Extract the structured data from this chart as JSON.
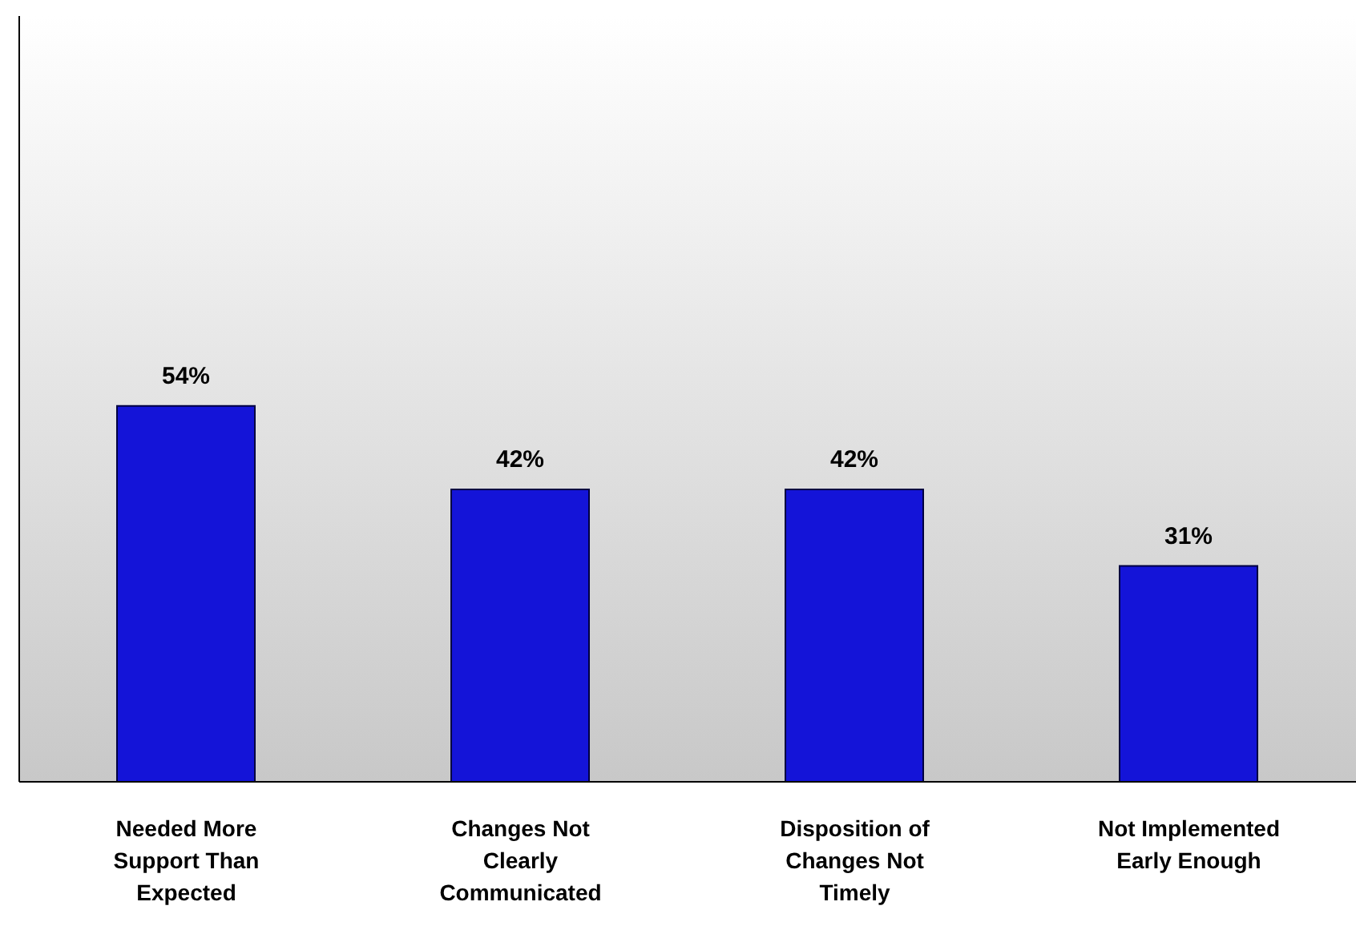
{
  "chart_data": {
    "type": "bar",
    "categories": [
      "Needed More Support Than Expected",
      "Changes Not Clearly Communicated",
      "Disposition of Changes Not Timely",
      "Not Implemented Early Enough"
    ],
    "values": [
      54,
      42,
      42,
      31
    ],
    "value_labels": [
      "54%",
      "42%",
      "42%",
      "31%"
    ],
    "color": "#1414d8",
    "ylim": [
      0,
      110
    ]
  }
}
